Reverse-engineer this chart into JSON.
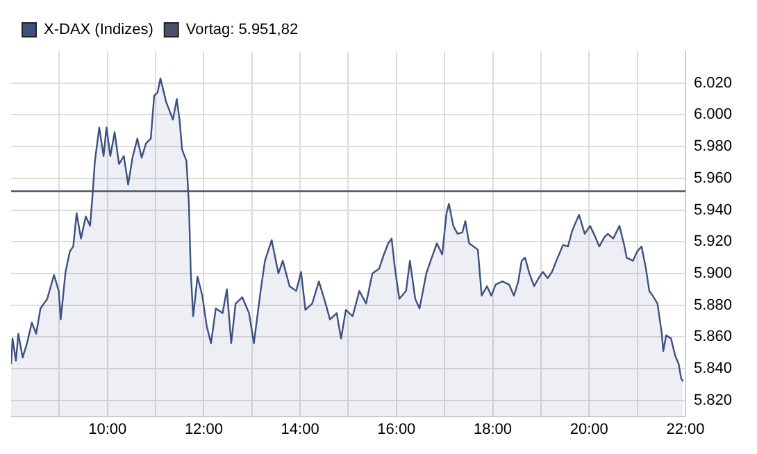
{
  "chart_data": {
    "type": "area",
    "x": [
      8.0,
      8.03,
      8.1,
      8.15,
      8.24,
      8.33,
      8.43,
      8.52,
      8.61,
      8.75,
      8.89,
      8.99,
      9.03,
      9.13,
      9.22,
      9.29,
      9.36,
      9.45,
      9.55,
      9.64,
      9.69,
      9.74,
      9.83,
      9.92,
      9.98,
      10.06,
      10.15,
      10.24,
      10.34,
      10.43,
      10.52,
      10.62,
      10.71,
      10.8,
      10.9,
      10.97,
      11.04,
      11.1,
      11.22,
      11.36,
      11.44,
      11.5,
      11.55,
      11.64,
      11.69,
      11.73,
      11.78,
      11.87,
      11.97,
      12.06,
      12.15,
      12.25,
      12.39,
      12.48,
      12.57,
      12.66,
      12.8,
      12.94,
      13.04,
      13.18,
      13.27,
      13.41,
      13.55,
      13.64,
      13.78,
      13.92,
      14.02,
      14.11,
      14.25,
      14.39,
      14.53,
      14.62,
      14.76,
      14.85,
      14.95,
      15.09,
      15.23,
      15.37,
      15.5,
      15.64,
      15.74,
      15.83,
      15.9,
      15.97,
      16.06,
      16.2,
      16.28,
      16.39,
      16.48,
      16.62,
      16.71,
      16.84,
      16.95,
      17.04,
      17.09,
      17.18,
      17.27,
      17.37,
      17.43,
      17.51,
      17.69,
      17.77,
      17.88,
      17.97,
      18.06,
      18.2,
      18.34,
      18.44,
      18.53,
      18.6,
      18.67,
      18.76,
      18.86,
      18.95,
      19.04,
      19.14,
      19.23,
      19.32,
      19.46,
      19.56,
      19.65,
      19.79,
      19.91,
      20.02,
      20.13,
      20.21,
      20.32,
      20.39,
      20.5,
      20.63,
      20.72,
      20.78,
      20.91,
      21.0,
      21.09,
      21.18,
      21.25,
      21.32,
      21.42,
      21.51,
      21.54,
      21.6,
      21.7,
      21.79,
      21.86,
      21.91,
      21.95
    ],
    "series": [
      {
        "name": "X-DAX (Indizes)",
        "color": "#3d5080",
        "values": [
          5843,
          5859,
          5845,
          5862,
          5847,
          5856,
          5869,
          5862,
          5878,
          5884,
          5899,
          5889,
          5871,
          5901,
          5914,
          5917,
          5938,
          5922,
          5936,
          5930,
          5949,
          5971,
          5992,
          5974,
          5992,
          5974,
          5989,
          5969,
          5974,
          5956,
          5973,
          5985,
          5973,
          5982,
          5985,
          6012,
          6014,
          6023,
          6008,
          5997,
          6010,
          5996,
          5978,
          5971,
          5945,
          5901,
          5873,
          5898,
          5886,
          5867,
          5856,
          5878,
          5875,
          5890,
          5856,
          5881,
          5885,
          5875,
          5856,
          5889,
          5908,
          5921,
          5900,
          5908,
          5892,
          5889,
          5901,
          5877,
          5881,
          5895,
          5881,
          5871,
          5875,
          5859,
          5877,
          5873,
          5889,
          5881,
          5900,
          5903,
          5912,
          5919,
          5922,
          5903,
          5884,
          5889,
          5908,
          5884,
          5878,
          5900,
          5908,
          5919,
          5912,
          5938,
          5944,
          5930,
          5925,
          5926,
          5933,
          5919,
          5915,
          5886,
          5892,
          5886,
          5893,
          5895,
          5893,
          5886,
          5895,
          5908,
          5910,
          5900,
          5892,
          5897,
          5901,
          5897,
          5901,
          5908,
          5918,
          5917,
          5927,
          5937,
          5925,
          5930,
          5923,
          5917,
          5923,
          5925,
          5922,
          5930,
          5919,
          5910,
          5908,
          5914,
          5917,
          5903,
          5889,
          5886,
          5881,
          5862,
          5851,
          5861,
          5859,
          5848,
          5843,
          5834,
          5832
        ]
      }
    ],
    "ref_lines": [
      {
        "axis": "y",
        "value": 5951.82,
        "label": "Vortag: 5.951,82",
        "color": "#4a5068"
      }
    ],
    "xlim": [
      8,
      22
    ],
    "xticks": [
      {
        "value": 9,
        "label": null
      },
      {
        "value": 10,
        "label": "10:00"
      },
      {
        "value": 11,
        "label": null
      },
      {
        "value": 12,
        "label": "12:00"
      },
      {
        "value": 13,
        "label": null
      },
      {
        "value": 14,
        "label": "14:00"
      },
      {
        "value": 15,
        "label": null
      },
      {
        "value": 16,
        "label": "16:00"
      },
      {
        "value": 17,
        "label": null
      },
      {
        "value": 18,
        "label": "18:00"
      },
      {
        "value": 19,
        "label": null
      },
      {
        "value": 20,
        "label": "20:00"
      },
      {
        "value": 21,
        "label": null
      },
      {
        "value": 22,
        "label": "22:00"
      }
    ],
    "ylim": [
      5810,
      6040
    ],
    "yticks": [
      {
        "value": 5820,
        "label": "5.820"
      },
      {
        "value": 5840,
        "label": "5.840"
      },
      {
        "value": 5860,
        "label": "5.860"
      },
      {
        "value": 5880,
        "label": "5.880"
      },
      {
        "value": 5900,
        "label": "5.900"
      },
      {
        "value": 5920,
        "label": "5.920"
      },
      {
        "value": 5940,
        "label": "5.940"
      },
      {
        "value": 5960,
        "label": "5.960"
      },
      {
        "value": 5980,
        "label": "5.980"
      },
      {
        "value": 6000,
        "label": "6.000"
      },
      {
        "value": 6020,
        "label": "6.020"
      }
    ],
    "grid": true,
    "legend": "top left",
    "marker": "none",
    "line_style": "solid"
  }
}
